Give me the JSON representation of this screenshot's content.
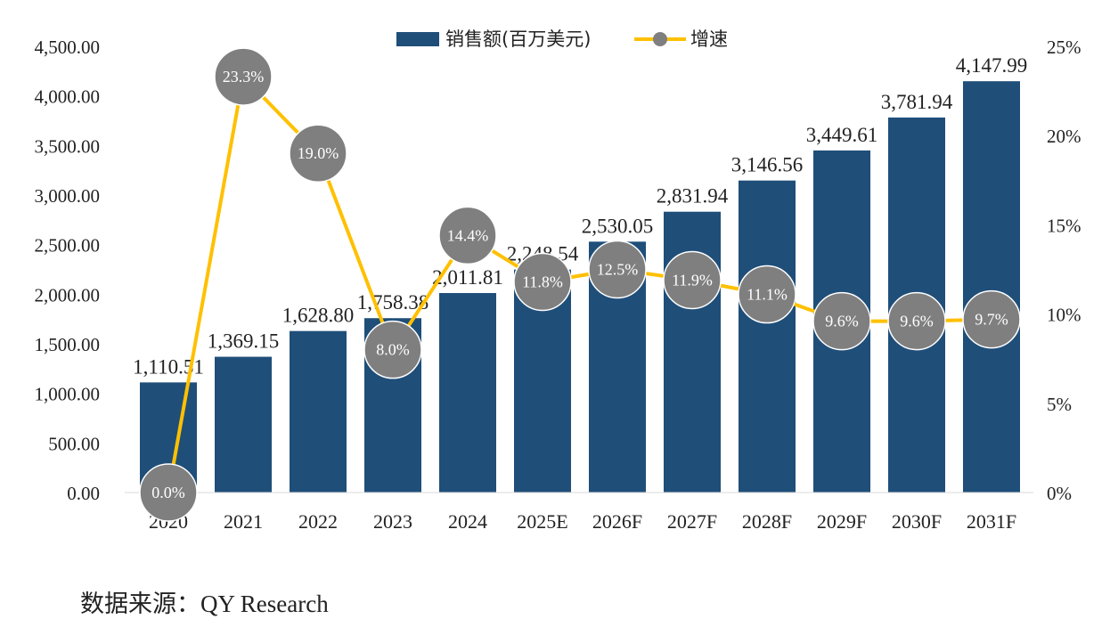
{
  "chart_data": {
    "type": "bar",
    "categories": [
      "2020",
      "2021",
      "2022",
      "2023",
      "2024",
      "2025E",
      "2026F",
      "2027F",
      "2028F",
      "2029F",
      "2030F",
      "2031F"
    ],
    "series": [
      {
        "name": "销售额(百万美元)",
        "type": "bar",
        "axis": "left",
        "values": [
          1110.51,
          1369.15,
          1628.8,
          1758.38,
          2011.81,
          2248.54,
          2530.05,
          2831.94,
          3146.56,
          3449.61,
          3781.94,
          4147.99
        ],
        "labels": [
          "1,110.51",
          "1,369.15",
          "1,628.80",
          "1,758.38",
          "2,011.81",
          "2,248.54",
          "2,530.05",
          "2,831.94",
          "3,146.56",
          "3,449.61",
          "3,781.94",
          "4,147.99"
        ]
      },
      {
        "name": "增速",
        "type": "line",
        "axis": "right",
        "values": [
          0.0,
          23.3,
          19.0,
          8.0,
          14.4,
          11.8,
          12.5,
          11.9,
          11.1,
          9.6,
          9.6,
          9.7
        ],
        "labels": [
          "0.0%",
          "23.3%",
          "19.0%",
          "8.0%",
          "14.4%",
          "11.8%",
          "12.5%",
          "11.9%",
          "11.1%",
          "9.6%",
          "9.6%",
          "9.7%"
        ]
      }
    ],
    "left_axis": {
      "ylim": [
        0,
        4500
      ],
      "ticks": [
        0,
        500,
        1000,
        1500,
        2000,
        2500,
        3000,
        3500,
        4000,
        4500
      ],
      "tick_labels": [
        "0.00",
        "500.00",
        "1,000.00",
        "1,500.00",
        "2,000.00",
        "2,500.00",
        "3,000.00",
        "3,500.00",
        "4,000.00",
        "4,500.00"
      ]
    },
    "right_axis": {
      "ylim": [
        0,
        25
      ],
      "ticks": [
        0,
        5,
        10,
        15,
        20,
        25
      ],
      "tick_labels": [
        "0%",
        "5%",
        "10%",
        "15%",
        "20%",
        "25%"
      ]
    },
    "legend_position": "top",
    "grid": false,
    "colors": {
      "bar": "#1f4e79",
      "line": "#ffc000",
      "marker": "#7f7f7f",
      "marker_label": "#ffffff"
    }
  },
  "footer": {
    "source": "数据来源：QY Research"
  }
}
